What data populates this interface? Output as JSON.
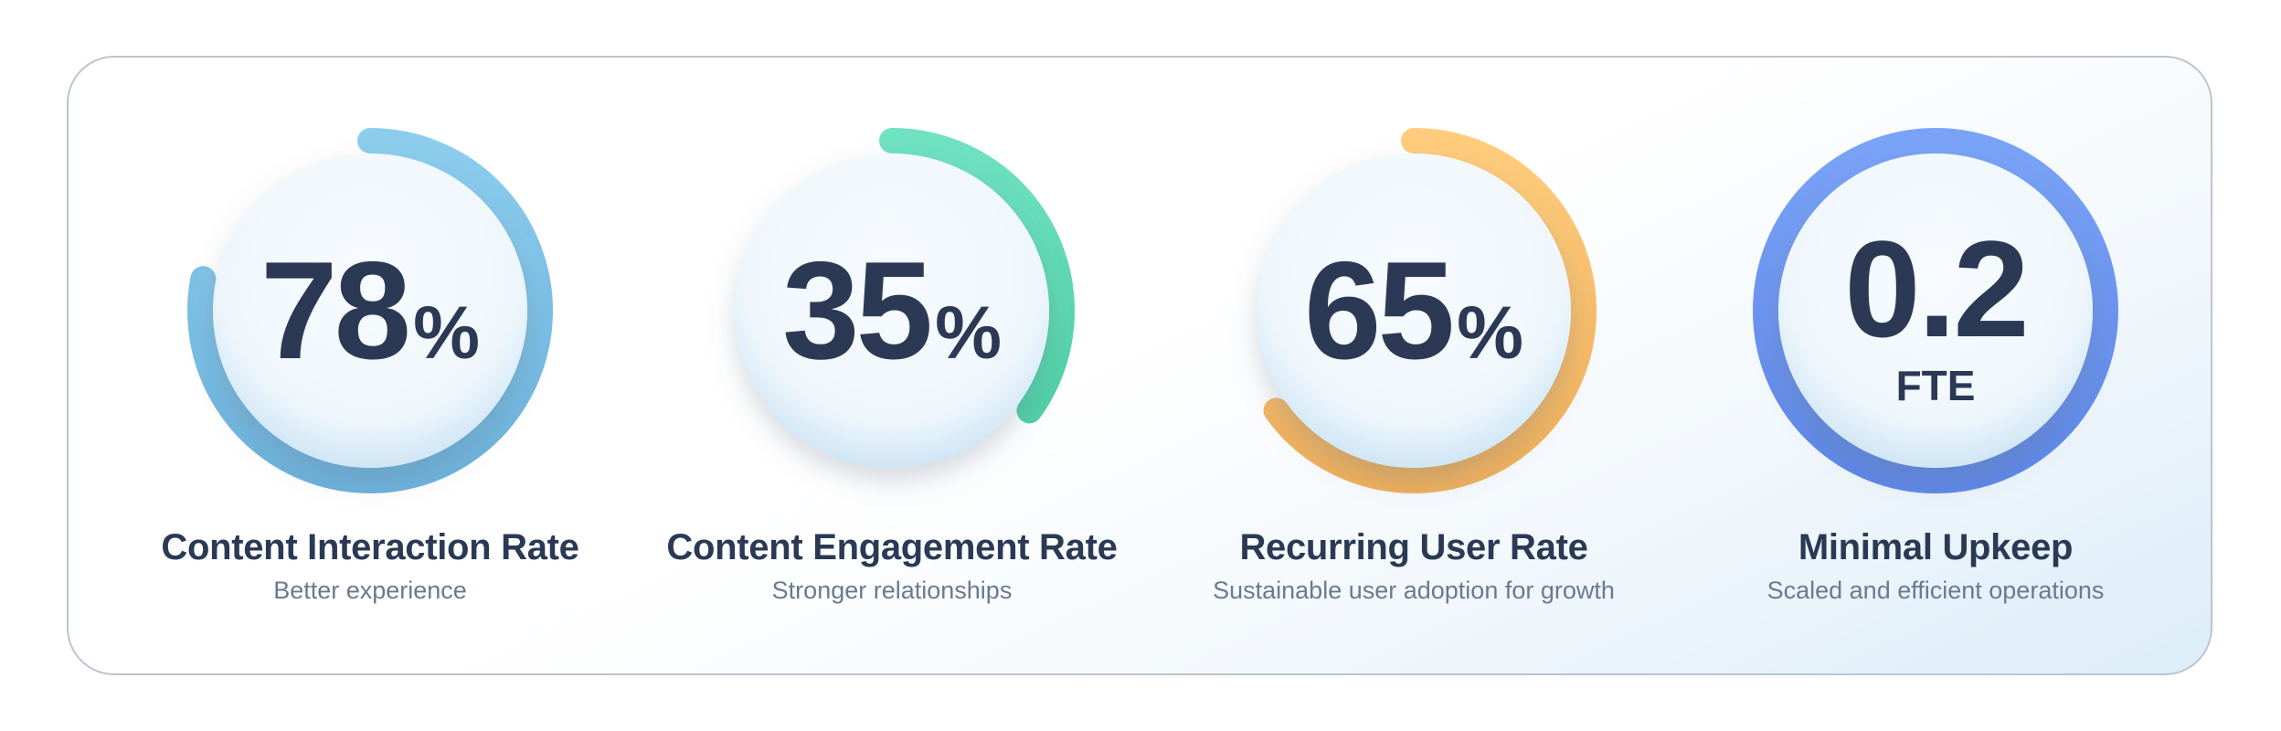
{
  "metrics": [
    {
      "value": "78",
      "unit": "%",
      "progress": 0.78,
      "label": "Content Interaction Rate",
      "subtitle": "Better experience",
      "color_light": "#8ccdee",
      "color_dark": "#6cb1db"
    },
    {
      "value": "35",
      "unit": "%",
      "progress": 0.35,
      "label": "Content Engagement Rate",
      "subtitle": "Stronger relationships",
      "color_light": "#6fe2c1",
      "color_dark": "#4fcfa4"
    },
    {
      "value": "65",
      "unit": "%",
      "progress": 0.65,
      "label": "Recurring User Rate",
      "subtitle": "Sustainable user adoption for growth",
      "color_light": "#ffcc7c",
      "color_dark": "#eeae5a"
    },
    {
      "value": "0.2",
      "unit": "FTE",
      "progress": 1.0,
      "label": "Minimal Upkeep",
      "subtitle": "Scaled and efficient operations",
      "color_light": "#79a3f7",
      "color_dark": "#5d86e6"
    }
  ]
}
